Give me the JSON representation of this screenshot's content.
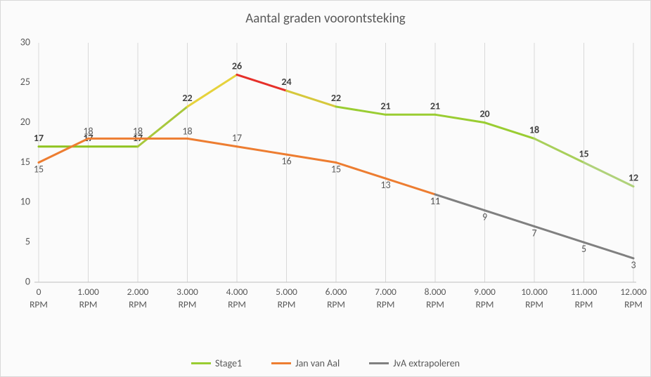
{
  "chart": {
    "type": "line",
    "title": "Aantal graden voorontsteking",
    "title_fontsize": 19,
    "title_color": "#595959",
    "background_color": "#fbfbfb",
    "border_color": "#d9d9d9",
    "label_color": "#595959",
    "axis_fontsize": 14,
    "categories": [
      "0 RPM",
      "1.000 RPM",
      "2.000 RPM",
      "3.000 RPM",
      "4.000 RPM",
      "5.000 RPM",
      "6.000 RPM",
      "7.000 RPM",
      "8.000 RPM",
      "9.000 RPM",
      "10.000 RPM",
      "11.000 RPM",
      "12.000 RPM"
    ],
    "ylim": [
      0,
      30
    ],
    "ytick_step": 5,
    "grid_color": "#d9d9d9",
    "axis_line_color": "#bfbfbf",
    "line_width": 3,
    "series": [
      {
        "name": "Stage1",
        "legend_color": "#9acd32",
        "values": [
          17,
          17,
          17,
          22,
          26,
          24,
          22,
          21,
          21,
          20,
          18,
          15,
          12
        ],
        "bold_labels": true,
        "segment_colors": [
          "#8fc31f",
          "#8fc31f",
          "#a8c83c",
          "#e6d23c",
          "#e6302a",
          "#d6c83c",
          "#9acd32",
          "#9acd32",
          "#9acd32",
          "#9acd32",
          "#a8cf5a",
          "#b0d27a"
        ]
      },
      {
        "name": "Jan van Aal",
        "legend_color": "#ed7d31",
        "values": [
          15,
          18,
          18,
          18,
          17,
          16,
          15,
          13,
          11,
          null,
          null,
          null,
          null
        ],
        "bold_labels": false,
        "segment_colors": [
          "#ed7d31",
          "#ed7d31",
          "#ed7d31",
          "#ed7d31",
          "#ed7d31",
          "#ed7d31",
          "#ed7d31",
          "#ed7d31"
        ]
      },
      {
        "name": "JvA extrapoleren",
        "legend_color": "#808080",
        "values": [
          null,
          null,
          null,
          null,
          null,
          null,
          null,
          null,
          11,
          9,
          7,
          5,
          3
        ],
        "bold_labels": false,
        "segment_colors": [
          "#808080",
          "#808080",
          "#808080",
          "#808080"
        ]
      }
    ],
    "legend_position": "bottom"
  }
}
